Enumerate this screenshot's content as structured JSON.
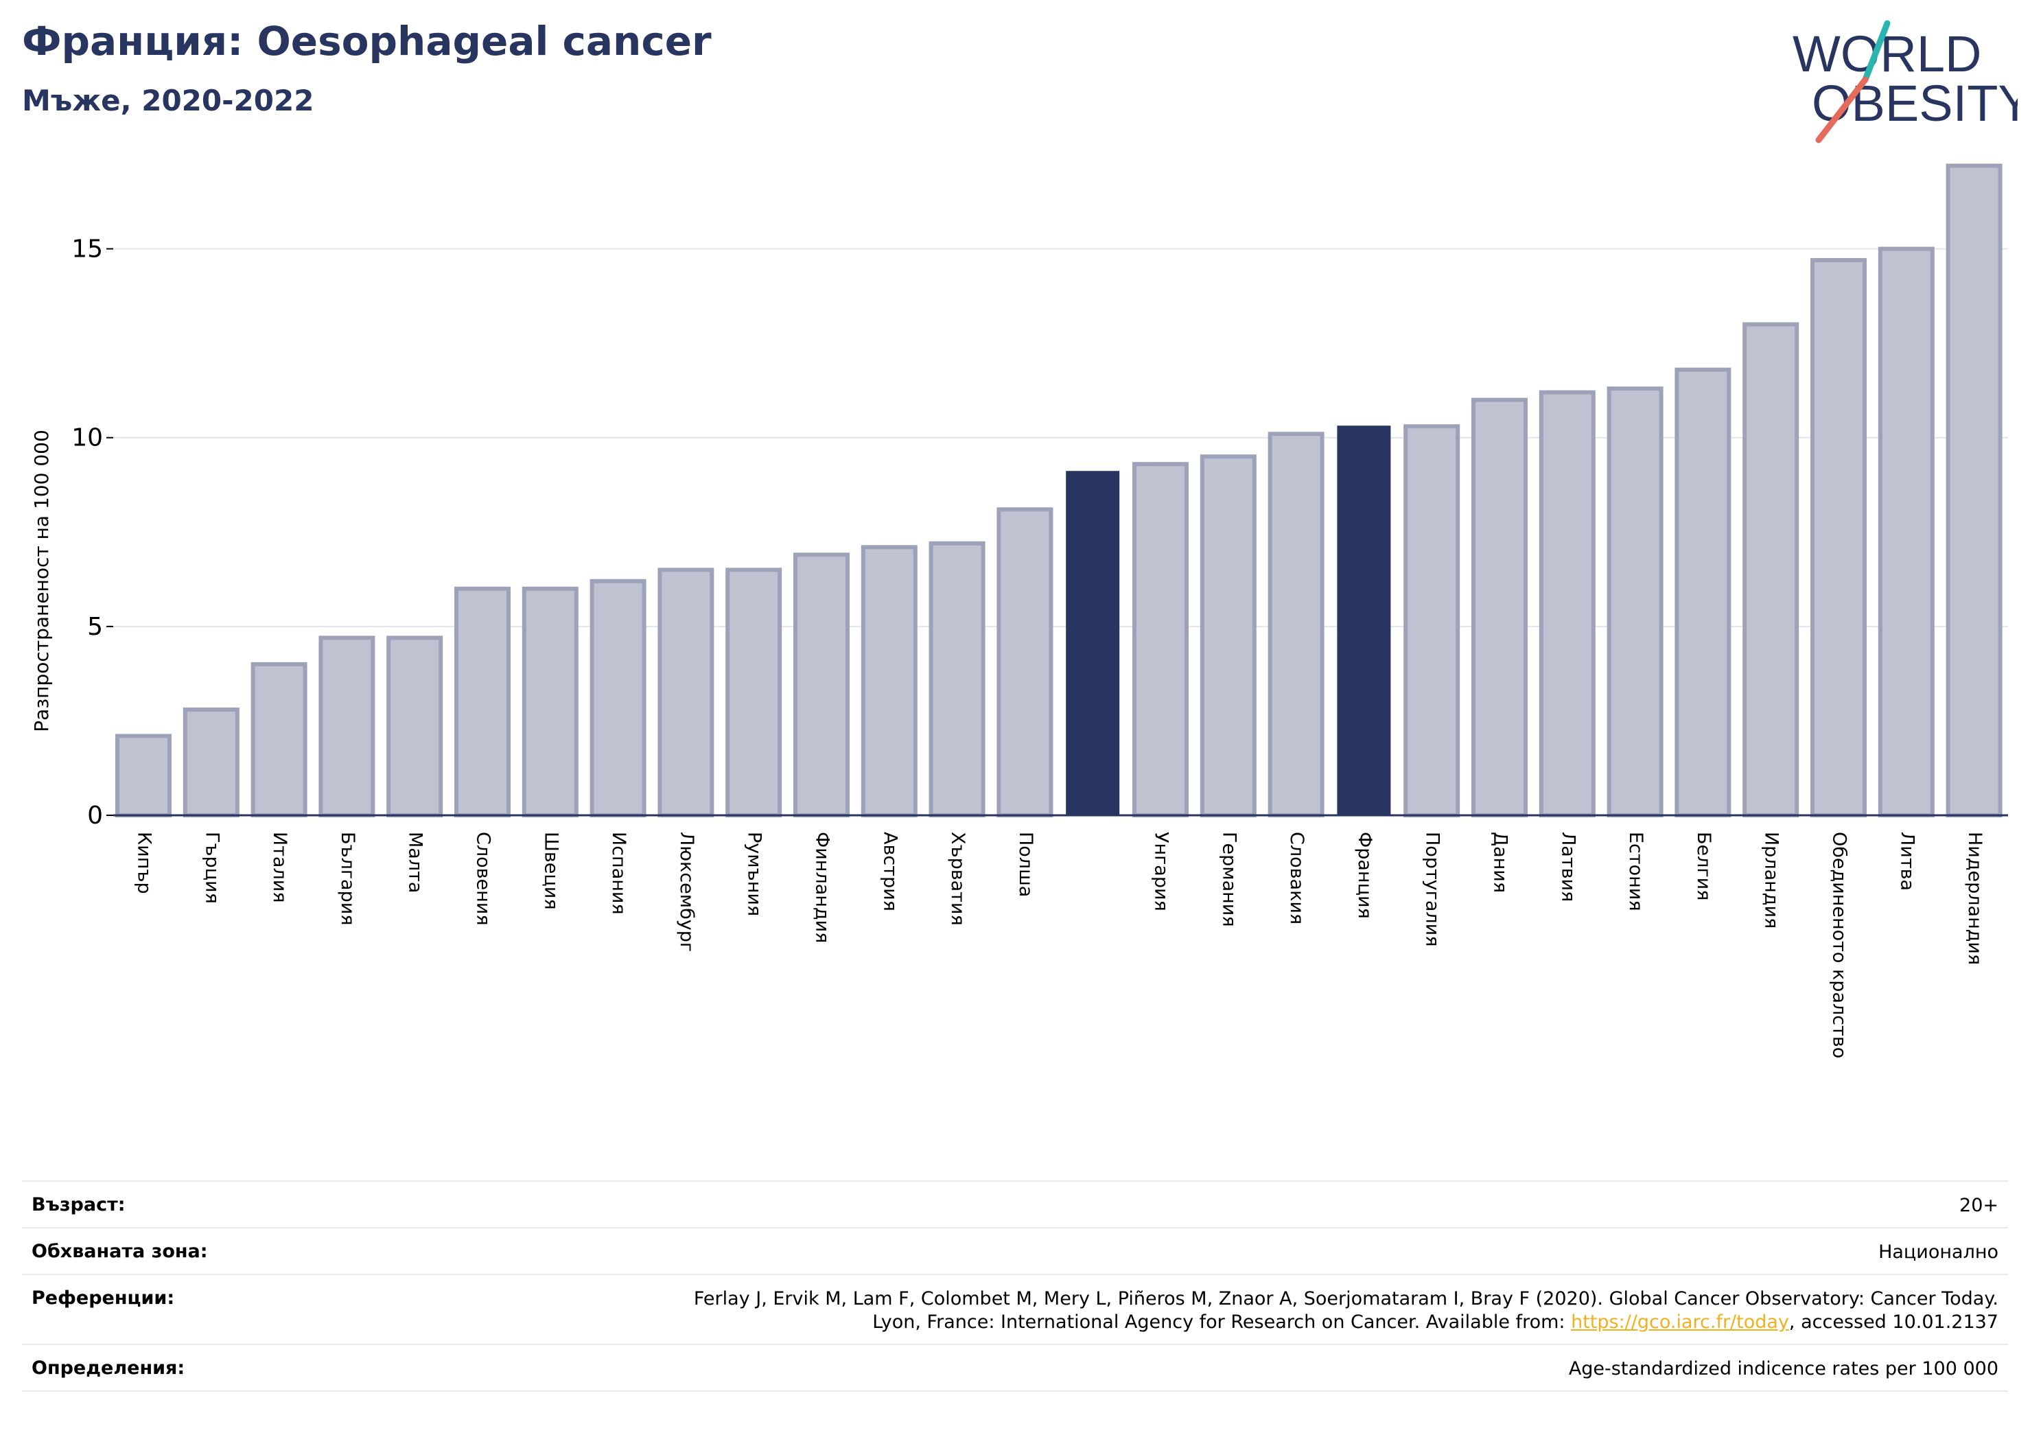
{
  "header": {
    "title": "Франция: Oesophageal cancer",
    "subtitle": "Мъже, 2020-2022"
  },
  "logo": {
    "line1": "WORLD",
    "line2": "OBESITY",
    "text_color": "#283560",
    "slash_colors": [
      "#2bb5b0",
      "#e56b5d"
    ]
  },
  "chart_data": {
    "type": "bar",
    "title": "Франция: Oesophageal cancer",
    "subtitle": "Мъже, 2020-2022",
    "ylabel": "Разпространеност  на 100 000",
    "xlabel": "",
    "ylim": [
      0,
      17.5
    ],
    "yticks": [
      0,
      5,
      10,
      15
    ],
    "grid": true,
    "categories": [
      "Кипър",
      "Гърция",
      "Италия",
      "България",
      "Малта",
      "Словения",
      "Швеция",
      "Испания",
      "Люксембург",
      "Румъния",
      "Финландия",
      "Австрия",
      "Хърватия",
      "Полша",
      "",
      "Унгария",
      "Германия",
      "Словакия",
      "Франция",
      "Португалия",
      "Дания",
      "Латвия",
      "Естония",
      "Белгия",
      "Ирландия",
      "Обединеното кралство",
      "Литва",
      "Нидерландия"
    ],
    "values": [
      2.1,
      2.8,
      4.0,
      4.7,
      4.7,
      6.0,
      6.0,
      6.2,
      6.5,
      6.5,
      6.9,
      7.1,
      7.2,
      8.1,
      9.1,
      9.3,
      9.5,
      10.1,
      10.3,
      10.3,
      11.0,
      11.2,
      11.3,
      11.8,
      13.0,
      14.7,
      15.0,
      17.2
    ],
    "highlight_indices": [
      14,
      18
    ],
    "colors": {
      "bar": "#bfc2d0",
      "bar_edge": "#9da2b9",
      "highlight": "#283560",
      "axis": "#283560",
      "grid": "#e3e5ec"
    }
  },
  "meta": {
    "age_label": "Възраст:",
    "age_value": "20+",
    "coverage_label": "Обхваната зона:",
    "coverage_value": "Национално",
    "references_label": "Референции:",
    "references_line1": "Ferlay J, Ervik M, Lam F, Colombet M, Mery L, Piñeros M, Znaor A, Soerjomataram I, Bray F (2020). Global Cancer Observatory: Cancer Today.",
    "references_line2_prefix": "Lyon, France: International Agency for Research on Cancer. Available from: ",
    "references_link": "https://gco.iarc.fr/today",
    "references_line2_suffix": ", accessed 10.01.2137",
    "definitions_label": "Определения:",
    "definitions_value": "Age-standardized indicence rates per 100 000"
  }
}
